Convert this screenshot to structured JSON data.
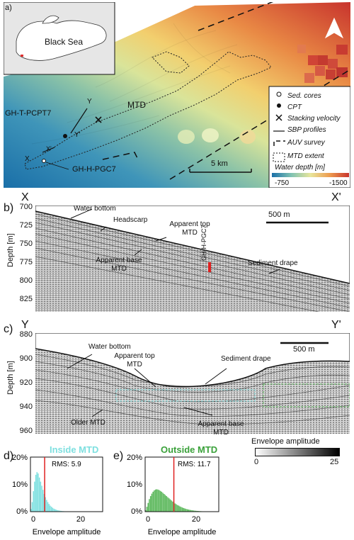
{
  "panel_a": {
    "label": "a)",
    "inset_label": "Black Sea",
    "mtd_label": "MTD",
    "site_cpt": "GH-T-PCPT7",
    "site_core": "GH-H-PGC7",
    "scale_label": "5 km",
    "profile_y_left": "Y",
    "profile_y_right": "Y'",
    "profile_x_left": "X",
    "profile_x_right": "X'",
    "legend": {
      "sed_cores": "Sed. cores",
      "cpt": "CPT",
      "stacking": "Stacking velocity",
      "sbp": "SBP profiles",
      "auv": "AUV survey",
      "mtd_extent": "MTD extent",
      "water_depth": "Water depth [m]",
      "depth_min": "-750",
      "depth_max": "-1500"
    }
  },
  "panel_b": {
    "label": "b)",
    "x_left": "X",
    "x_right": "X'",
    "ylabel": "Depth [m]",
    "yticks": [
      "700",
      "725",
      "750",
      "775",
      "800",
      "825"
    ],
    "scale_label": "500 m",
    "site": "GH-H-PGC7",
    "annotations": {
      "water_bottom": "Water bottom",
      "headscarp": "Headscarp",
      "apparent_top_1": "Apparent top",
      "apparent_top_2": "MTD",
      "apparent_base_1": "Apparent base",
      "apparent_base_2": "MTD",
      "sediment_drape": "Sediment drape"
    }
  },
  "panel_c": {
    "label": "c)",
    "y_left": "Y",
    "y_right": "Y'",
    "ylabel": "Depth [m]",
    "yticks": [
      "880",
      "900",
      "920",
      "940",
      "960"
    ],
    "scale_label": "500 m",
    "annotations": {
      "water_bottom": "Water bottom",
      "apparent_top_1": "Apparent top",
      "apparent_top_2": "MTD",
      "sediment_drape": "Sediment drape",
      "older_mtd": "Older MTD",
      "apparent_base_1": "Apparent base",
      "apparent_base_2": "MTD"
    },
    "colorbar_title": "Envelope amplitude",
    "colorbar_min": "0",
    "colorbar_max": "25"
  },
  "panel_d": {
    "label": "d)",
    "title": "Inside MTD",
    "rms": "RMS: 5.9",
    "xlabel": "Envelope amplitude",
    "yticks": [
      "0%",
      "10%",
      "20%"
    ],
    "xticks": [
      "0",
      "20"
    ]
  },
  "panel_e": {
    "label": "e)",
    "title": "Outside MTD",
    "rms": "RMS: 11.7",
    "xlabel": "Envelope amplitude",
    "yticks": [
      "0%",
      "10%",
      "20%"
    ],
    "xticks": [
      "0",
      "20"
    ]
  },
  "chart_data": [
    {
      "type": "bar",
      "name": "Inside MTD",
      "color": "#7fe0e0",
      "xlim": [
        0,
        30
      ],
      "ylim": [
        0,
        20
      ],
      "rms": 5.9,
      "bin_width": 0.5,
      "x": [
        0.25,
        0.75,
        1.25,
        1.75,
        2.25,
        2.75,
        3.25,
        3.75,
        4.25,
        4.75,
        5.25,
        5.75,
        6.25,
        6.75,
        7.25,
        7.75,
        8.25,
        8.75,
        9.25,
        9.75,
        10.25,
        10.75,
        11.25,
        11.75,
        12.25,
        12.75,
        13.25,
        13.75,
        14.25,
        14.75,
        15.25,
        15.75,
        16.25,
        16.75,
        17.25,
        17.75
      ],
      "values": [
        1.0,
        3.5,
        7.5,
        11.0,
        13.5,
        14.5,
        14.0,
        12.5,
        11.0,
        9.5,
        8.0,
        6.5,
        5.3,
        4.3,
        3.5,
        2.8,
        2.2,
        1.8,
        1.4,
        1.1,
        0.9,
        0.7,
        0.55,
        0.45,
        0.35,
        0.28,
        0.22,
        0.18,
        0.14,
        0.11,
        0.09,
        0.07,
        0.05,
        0.04,
        0.03,
        0.02
      ]
    },
    {
      "type": "bar",
      "name": "Outside MTD",
      "color": "#5cb85c",
      "xlim": [
        0,
        30
      ],
      "ylim": [
        0,
        20
      ],
      "rms": 11.7,
      "bin_width": 0.5,
      "x": [
        0.25,
        0.75,
        1.25,
        1.75,
        2.25,
        2.75,
        3.25,
        3.75,
        4.25,
        4.75,
        5.25,
        5.75,
        6.25,
        6.75,
        7.25,
        7.75,
        8.25,
        8.75,
        9.25,
        9.75,
        10.25,
        10.75,
        11.25,
        11.75,
        12.25,
        12.75,
        13.25,
        13.75,
        14.25,
        14.75,
        15.25,
        15.75,
        16.25,
        16.75,
        17.25,
        17.75,
        18.25,
        18.75,
        19.25,
        19.75,
        20.25,
        20.75,
        21.25,
        21.75,
        22.25,
        22.75,
        23.25,
        23.75,
        24.25,
        24.75,
        25.25,
        25.75,
        26.25,
        26.75,
        27.25,
        27.75
      ],
      "values": [
        0.5,
        1.8,
        3.2,
        4.6,
        5.7,
        6.6,
        7.3,
        7.8,
        8.1,
        8.2,
        8.1,
        7.9,
        7.6,
        7.3,
        6.9,
        6.5,
        6.1,
        5.7,
        5.3,
        4.9,
        4.5,
        4.1,
        3.7,
        3.4,
        3.0,
        2.7,
        2.4,
        2.2,
        1.9,
        1.7,
        1.5,
        1.3,
        1.15,
        1.0,
        0.88,
        0.76,
        0.66,
        0.57,
        0.49,
        0.42,
        0.36,
        0.31,
        0.27,
        0.23,
        0.2,
        0.17,
        0.14,
        0.12,
        0.1,
        0.09,
        0.07,
        0.06,
        0.05,
        0.04,
        0.03,
        0.02
      ]
    }
  ]
}
